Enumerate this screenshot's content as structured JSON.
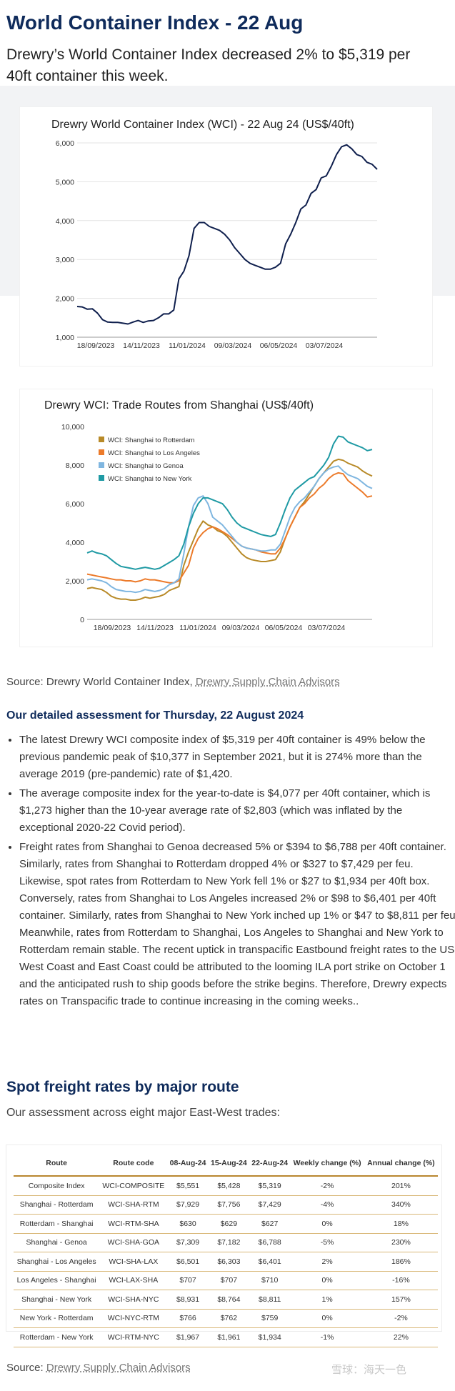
{
  "header": {
    "title": "World Container Index - 22 Aug",
    "subtitle": "Drewry’s World Container Index decreased 2% to $5,319 per 40ft container this week."
  },
  "chart_data": [
    {
      "type": "line",
      "title": "Drewry World Container Index (WCI) - 22 Aug 24 (US$/40ft)",
      "xlabel": "",
      "ylabel": "",
      "ylim": [
        1000,
        6000
      ],
      "yticks": [
        "1,000",
        "2,000",
        "3,000",
        "4,000",
        "5,000",
        "6,000"
      ],
      "xticks": [
        "18/09/2023",
        "14/11/2023",
        "11/01/2024",
        "09/03/2024",
        "06/05/2024",
        "03/07/2024"
      ],
      "grid": "horizontal",
      "series": [
        {
          "color": "#0f1f4d",
          "values": [
            1790,
            1780,
            1720,
            1730,
            1620,
            1450,
            1390,
            1380,
            1380,
            1360,
            1340,
            1390,
            1430,
            1380,
            1420,
            1430,
            1500,
            1600,
            1600,
            1700,
            2500,
            2700,
            3100,
            3800,
            3950,
            3950,
            3850,
            3800,
            3750,
            3650,
            3500,
            3300,
            3150,
            3000,
            2900,
            2850,
            2800,
            2750,
            2750,
            2800,
            2900,
            3400,
            3650,
            3950,
            4300,
            4400,
            4700,
            4800,
            5100,
            5150,
            5400,
            5700,
            5900,
            5950,
            5850,
            5700,
            5650,
            5500,
            5450,
            5319
          ]
        }
      ]
    },
    {
      "type": "line",
      "title": "Drewry WCI: Trade Routes from Shanghai (US$/40ft)",
      "xlabel": "",
      "ylabel": "",
      "ylim": [
        0,
        10000
      ],
      "yticks": [
        "0",
        "2,000",
        "4,000",
        "6,000",
        "8,000",
        "10,000"
      ],
      "xticks": [
        "18/09/2023",
        "14/11/2023",
        "11/01/2024",
        "09/03/2024",
        "06/05/2024",
        "03/07/2024"
      ],
      "legend": "top-left",
      "series": [
        {
          "name": "WCI: Shanghai to Rotterdam",
          "color": "#b88a28",
          "values": [
            1600,
            1650,
            1600,
            1550,
            1400,
            1200,
            1100,
            1050,
            1050,
            1000,
            1000,
            1050,
            1150,
            1100,
            1150,
            1200,
            1300,
            1500,
            1600,
            1700,
            2800,
            3500,
            4100,
            4700,
            5100,
            4900,
            4800,
            4600,
            4500,
            4300,
            4000,
            3700,
            3400,
            3200,
            3100,
            3050,
            3000,
            3000,
            3050,
            3100,
            3500,
            4200,
            4800,
            5300,
            5800,
            6100,
            6500,
            6900,
            7300,
            7600,
            7900,
            8200,
            8300,
            8250,
            8100,
            8000,
            7900,
            7700,
            7550,
            7429
          ]
        },
        {
          "name": "WCI: Shanghai to Los Angeles",
          "color": "#ec7a2a",
          "values": [
            2350,
            2300,
            2250,
            2200,
            2150,
            2100,
            2050,
            2050,
            2000,
            2000,
            1950,
            2000,
            2100,
            2050,
            2050,
            2000,
            1950,
            1900,
            1900,
            2000,
            2400,
            2800,
            3700,
            4200,
            4500,
            4700,
            4800,
            4700,
            4550,
            4400,
            4200,
            4000,
            3800,
            3700,
            3650,
            3600,
            3500,
            3450,
            3400,
            3400,
            3700,
            4200,
            4800,
            5300,
            5800,
            6000,
            6300,
            6500,
            6800,
            7000,
            7300,
            7500,
            7600,
            7550,
            7200,
            7000,
            6800,
            6600,
            6350,
            6401
          ]
        },
        {
          "name": "WCI: Shanghai to Genoa",
          "color": "#7fb6e0",
          "values": [
            2050,
            2100,
            2050,
            2000,
            1900,
            1700,
            1550,
            1500,
            1450,
            1450,
            1400,
            1450,
            1550,
            1500,
            1450,
            1500,
            1600,
            1800,
            1900,
            2100,
            3400,
            4800,
            5900,
            6300,
            6400,
            6000,
            5300,
            5100,
            4900,
            4600,
            4300,
            4000,
            3800,
            3700,
            3650,
            3600,
            3550,
            3550,
            3600,
            3600,
            3900,
            4600,
            5300,
            5800,
            6100,
            6300,
            6600,
            6900,
            7300,
            7600,
            7800,
            7900,
            7950,
            7700,
            7500,
            7400,
            7300,
            7100,
            6900,
            6788
          ]
        },
        {
          "name": "WCI: Shanghai to New York",
          "color": "#1f9aa4",
          "values": [
            3450,
            3550,
            3450,
            3400,
            3300,
            3100,
            2900,
            2750,
            2700,
            2650,
            2600,
            2650,
            2700,
            2650,
            2600,
            2650,
            2800,
            2950,
            3100,
            3300,
            3900,
            4800,
            5500,
            6000,
            6300,
            6300,
            6200,
            6100,
            6000,
            5700,
            5300,
            5000,
            4800,
            4700,
            4600,
            4500,
            4400,
            4350,
            4300,
            4400,
            5000,
            5700,
            6300,
            6700,
            6900,
            7100,
            7300,
            7400,
            7700,
            8000,
            8400,
            9100,
            9500,
            9450,
            9200,
            9100,
            9000,
            8900,
            8750,
            8811
          ]
        }
      ]
    },
    {
      "type": "table",
      "columns": [
        "Route",
        "Route code",
        "08-Aug-24",
        "15-Aug-24",
        "22-Aug-24",
        "Weekly change (%)",
        "Annual change (%)"
      ],
      "rows": [
        [
          "Composite Index",
          "WCI-COMPOSITE",
          "$5,551",
          "$5,428",
          "$5,319",
          "-2%",
          "201%"
        ],
        [
          "Shanghai - Rotterdam",
          "WCI-SHA-RTM",
          "$7,929",
          "$7,756",
          "$7,429",
          "-4%",
          "340%"
        ],
        [
          "Rotterdam - Shanghai",
          "WCI-RTM-SHA",
          "$630",
          "$629",
          "$627",
          "0%",
          "18%"
        ],
        [
          "Shanghai - Genoa",
          "WCI-SHA-GOA",
          "$7,309",
          "$7,182",
          "$6,788",
          "-5%",
          "230%"
        ],
        [
          "Shanghai - Los Angeles",
          "WCI-SHA-LAX",
          "$6,501",
          "$6,303",
          "$6,401",
          "2%",
          "186%"
        ],
        [
          "Los Angeles - Shanghai",
          "WCI-LAX-SHA",
          "$707",
          "$707",
          "$710",
          "0%",
          "-16%"
        ],
        [
          "Shanghai - New York",
          "WCI-SHA-NYC",
          "$8,931",
          "$8,764",
          "$8,811",
          "1%",
          "157%"
        ],
        [
          "New York - Rotterdam",
          "WCI-NYC-RTM",
          "$766",
          "$762",
          "$759",
          "0%",
          "-2%"
        ],
        [
          "Rotterdam - New York",
          "WCI-RTM-NYC",
          "$1,967",
          "$1,961",
          "$1,934",
          "-1%",
          "22%"
        ]
      ]
    }
  ],
  "source1": {
    "prefix": "Source: Drewry World Container Index, ",
    "link": "Drewry Supply Chain Advisors"
  },
  "assessment": {
    "title": "Our detailed assessment for Thursday, 22 August 2024",
    "bullets": [
      "The latest Drewry WCI composite index of $5,319 per 40ft container is 49% below the previous pandemic peak of $10,377 in September 2021, but it is 274% more than the average 2019 (pre-pandemic) rate of $1,420.",
      "The average composite index for the year-to-date is $4,077 per 40ft container, which is $1,273 higher than the 10-year average rate of $2,803 (which was inflated by the exceptional 2020-22 Covid period).",
      "Freight rates from Shanghai to Genoa decreased 5% or $394 to $6,788 per 40ft container. Similarly, rates from Shanghai to Rotterdam dropped 4% or $327 to $7,429 per feu. Likewise, spot rates from Rotterdam to New York fell 1% or $27 to $1,934 per 40ft box. Conversely, rates from Shanghai to Los Angeles increased 2% or $98 to $6,401 per 40ft container. Similarly, rates from Shanghai to New York inched up 1% or $47 to $8,811 per feu. Meanwhile, rates from Rotterdam to Shanghai, Los Angeles to Shanghai and New York to Rotterdam remain stable. The recent uptick in transpacific Eastbound freight rates to the US West Coast and East Coast could be attributed to the looming ILA port strike on October 1 and the anticipated rush to ship goods before the strike begins. Therefore, Drewry expects rates on Transpacific trade to continue increasing in the coming weeks.."
    ]
  },
  "spot": {
    "title": "Spot freight rates by major route",
    "subtitle": "Our assessment across eight major East-West trades:"
  },
  "source2": {
    "prefix": "Source: ",
    "link": "Drewry Supply Chain Advisors"
  },
  "watermark": "雪球：海天一色"
}
